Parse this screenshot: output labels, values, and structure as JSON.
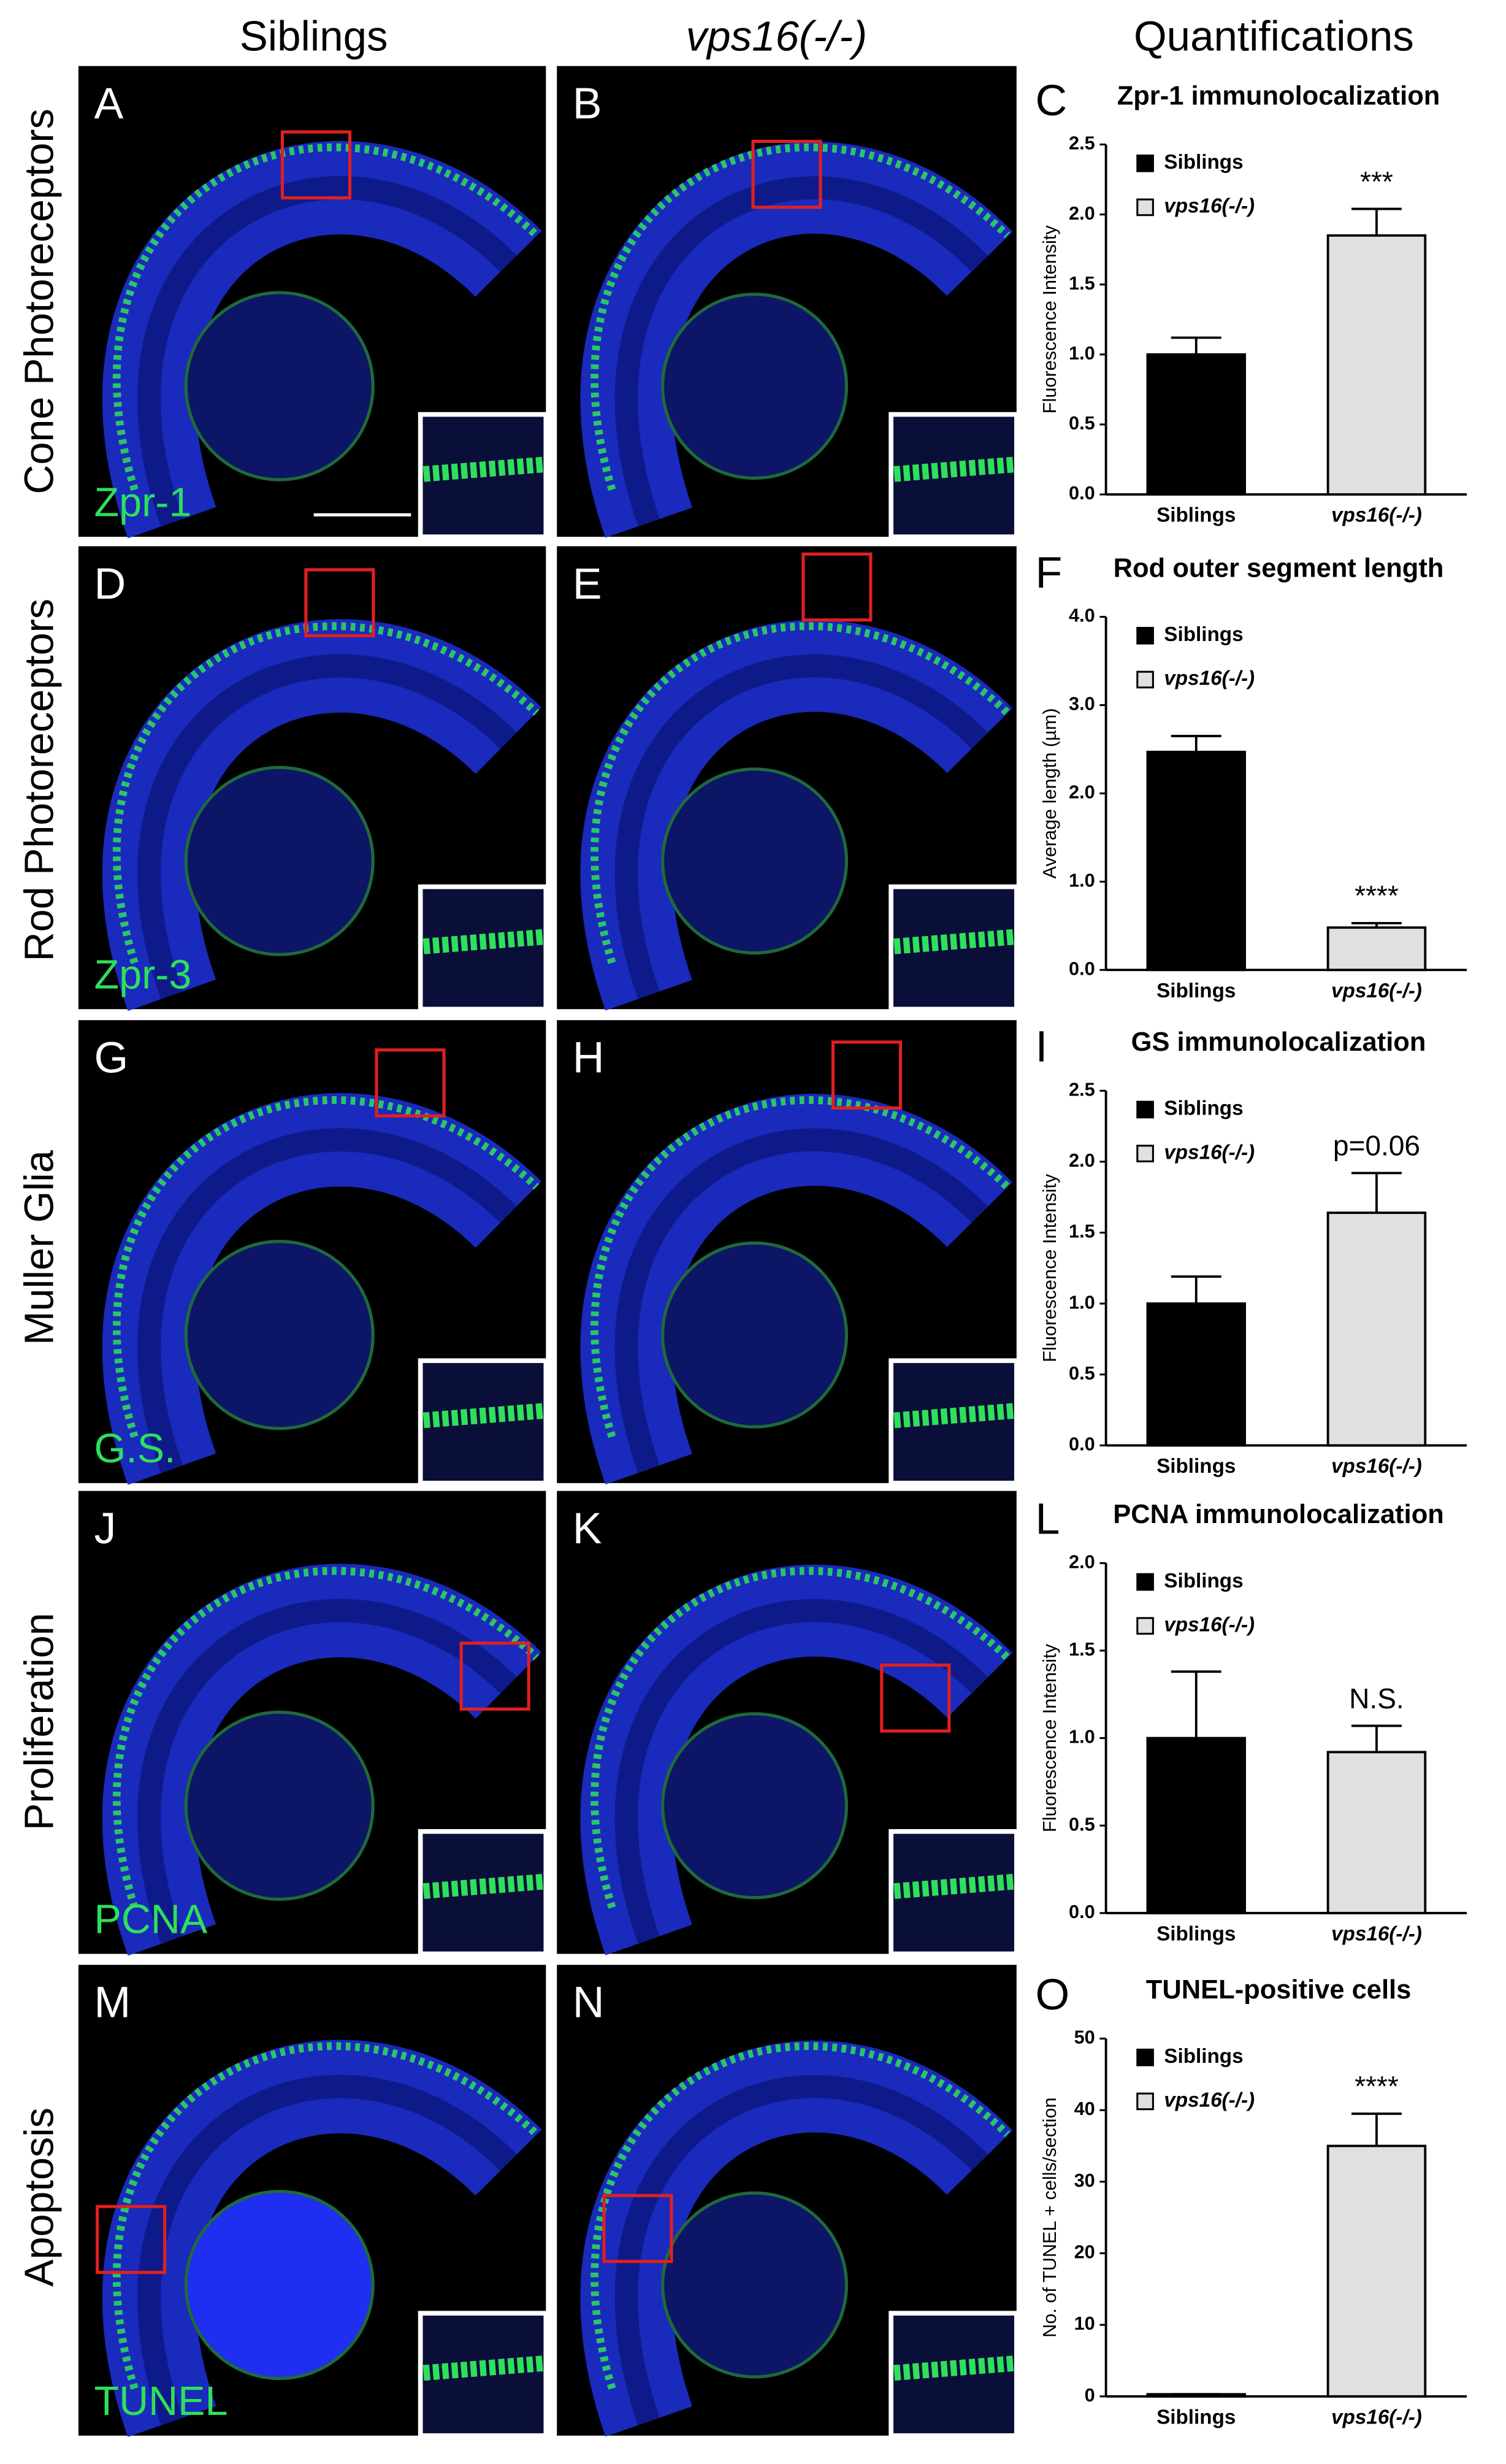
{
  "columns": [
    "Siblings",
    "vps16(-/-)",
    "Quantifications"
  ],
  "rows": [
    "Cone Photoreceptors",
    "Rod Photoreceptors",
    "Muller Glia",
    "Proliferation",
    "Apoptosis"
  ],
  "panels": [
    {
      "letter": "A",
      "stain": "Zpr-1"
    },
    {
      "letter": "B"
    },
    {
      "letter": "D",
      "stain": "Zpr-3"
    },
    {
      "letter": "E"
    },
    {
      "letter": "G",
      "stain": "G.S."
    },
    {
      "letter": "H"
    },
    {
      "letter": "J",
      "stain": "PCNA"
    },
    {
      "letter": "K"
    },
    {
      "letter": "M",
      "stain": "TUNEL"
    },
    {
      "letter": "N"
    }
  ],
  "chart_data": [
    {
      "type": "bar",
      "panel": "C",
      "title": "Zpr-1 immunolocalization",
      "y_label": "Fluorescence Intensity",
      "categories": [
        "Siblings",
        "vps16(-/-)"
      ],
      "values": [
        1.0,
        1.85
      ],
      "errors": [
        0.12,
        0.19
      ],
      "colors": [
        "#000000",
        "#e0e0e0"
      ],
      "annotation": "***",
      "ylim": [
        0,
        2.5
      ],
      "yticks": [
        {
          "value": 0,
          "label": "0.0"
        },
        0.5,
        {
          "value": 1,
          "label": "1.0"
        },
        1.5,
        {
          "value": 2,
          "label": "2.0"
        },
        2.5
      ]
    },
    {
      "type": "bar",
      "panel": "F",
      "title": "Rod outer segment length",
      "y_label": "Average length (µm)",
      "categories": [
        "Siblings",
        "vps16(-/-)"
      ],
      "values": [
        2.47,
        0.48
      ],
      "errors": [
        0.18,
        0.05
      ],
      "colors": [
        "#000000",
        "#e0e0e0"
      ],
      "annotation": "****",
      "ylim": [
        0,
        4
      ],
      "yticks": [
        {
          "value": 0,
          "label": "0.0"
        },
        {
          "value": 1,
          "label": "1.0"
        },
        {
          "value": 2,
          "label": "2.0"
        },
        {
          "value": 3,
          "label": "3.0"
        },
        {
          "value": 4,
          "label": "4.0"
        }
      ]
    },
    {
      "type": "bar",
      "panel": "I",
      "title": "GS immunolocalization",
      "y_label": "Fluorescence Intensity",
      "categories": [
        "Siblings",
        "vps16(-/-)"
      ],
      "values": [
        1.0,
        1.64
      ],
      "errors": [
        0.19,
        0.28
      ],
      "colors": [
        "#000000",
        "#e0e0e0"
      ],
      "annotation": "p=0.06",
      "ylim": [
        0,
        2.5
      ],
      "yticks": [
        {
          "value": 0,
          "label": "0.0"
        },
        0.5,
        {
          "value": 1,
          "label": "1.0"
        },
        1.5,
        {
          "value": 2,
          "label": "2.0"
        },
        2.5
      ]
    },
    {
      "type": "bar",
      "panel": "L",
      "title": "PCNA immunolocalization",
      "y_label": "Fluorescence Intensity",
      "categories": [
        "Siblings",
        "vps16(-/-)"
      ],
      "values": [
        1.0,
        0.92
      ],
      "errors": [
        0.38,
        0.15
      ],
      "colors": [
        "#000000",
        "#e0e0e0"
      ],
      "annotation": "N.S.",
      "ylim": [
        0,
        2
      ],
      "yticks": [
        {
          "value": 0,
          "label": "0.0"
        },
        0.5,
        {
          "value": 1,
          "label": "1.0"
        },
        1.5,
        {
          "value": 2,
          "label": "2.0"
        }
      ]
    },
    {
      "type": "bar",
      "panel": "O",
      "title": "TUNEL-positive cells",
      "y_label": "No. of TUNEL + cells/section",
      "categories": [
        "Siblings",
        "vps16(-/-)"
      ],
      "values": [
        0.3,
        35
      ],
      "errors": [
        0,
        4.5
      ],
      "colors": [
        "#000000",
        "#e0e0e0"
      ],
      "annotation": "****",
      "ylim": [
        0,
        50
      ],
      "yticks": [
        0,
        10,
        20,
        30,
        40,
        50
      ]
    }
  ]
}
